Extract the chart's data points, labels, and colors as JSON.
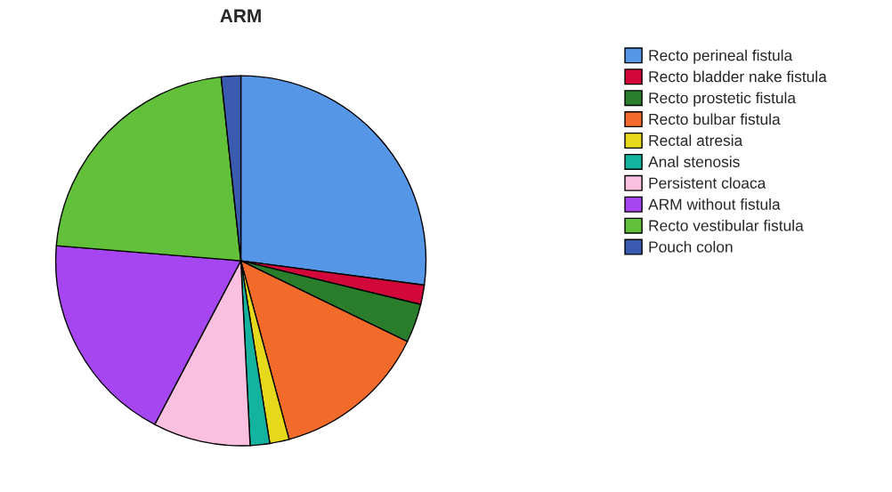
{
  "chart_data": {
    "type": "pie",
    "title": "ARM",
    "categories": [
      "Recto perineal fistula",
      "Recto bladder nake fistula",
      "Recto prostetic fistula",
      "Recto bulbar fistula",
      "Rectal atresia",
      "Anal stenosis",
      "Persistent cloaca",
      "ARM without fistula",
      "Recto vestibular fistula",
      "Pouch colon"
    ],
    "values": [
      27.1,
      1.7,
      3.4,
      13.6,
      1.7,
      1.7,
      8.5,
      18.6,
      22.0,
      1.7
    ],
    "colors": [
      "#5596e6",
      "#d2073a",
      "#2a7d2a",
      "#f26b2a",
      "#e6d81a",
      "#14b3a0",
      "#fbc0e0",
      "#a646f0",
      "#62c03a",
      "#3a5bb0"
    ],
    "legend": "right"
  }
}
